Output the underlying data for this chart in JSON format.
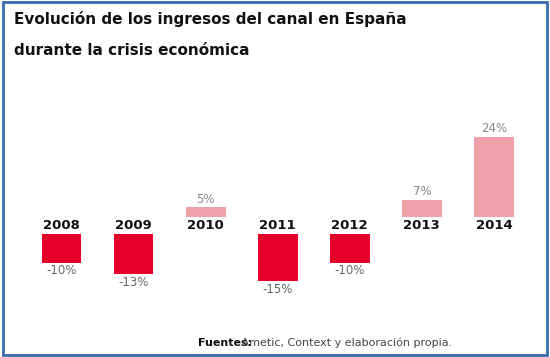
{
  "title_line1": "Evolución de los ingresos del canal en España",
  "title_line2": "durante la crisis económica",
  "categories": [
    "2008",
    "2009",
    "2010",
    "2011",
    "2012",
    "2013",
    "2014"
  ],
  "values": [
    -10,
    -13,
    5,
    -15,
    -10,
    7,
    24
  ],
  "bar_colors": [
    "#e8002d",
    "#e8002d",
    "#f0a0a8",
    "#e8002d",
    "#e8002d",
    "#f0a0a8",
    "#f0a0a8"
  ],
  "label_colors": [
    "#666666",
    "#666666",
    "#888888",
    "#666666",
    "#666666",
    "#888888",
    "#888888"
  ],
  "labels": [
    "-10%",
    "-13%",
    "5%",
    "-15%",
    "-10%",
    "7%",
    "24%"
  ],
  "footnote_bold": "Fuentes:",
  "footnote_regular": " Ametic, Context y elaboración propia.",
  "background_color": "#ffffff",
  "border_color": "#3a6aaa",
  "ylim": [
    -19,
    30
  ],
  "bar_width": 0.55
}
